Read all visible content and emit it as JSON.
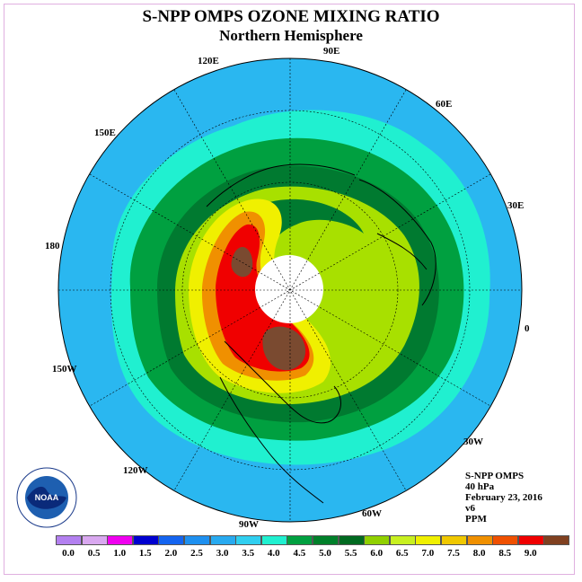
{
  "title": "S-NPP OMPS OZONE MIXING RATIO",
  "subtitle": "Northern Hemisphere",
  "longitude_labels": [
    {
      "text": "90E",
      "name": "lon-label-90e"
    },
    {
      "text": "60E",
      "name": "lon-label-60e"
    },
    {
      "text": "30E",
      "name": "lon-label-30e"
    },
    {
      "text": "0",
      "name": "lon-label-0"
    },
    {
      "text": "30W",
      "name": "lon-label-30w"
    },
    {
      "text": "60W",
      "name": "lon-label-60w"
    },
    {
      "text": "90W",
      "name": "lon-label-90w"
    },
    {
      "text": "120W",
      "name": "lon-label-120w"
    },
    {
      "text": "150W",
      "name": "lon-label-150w"
    },
    {
      "text": "180",
      "name": "lon-label-180"
    },
    {
      "text": "150E",
      "name": "lon-label-150e"
    },
    {
      "text": "120E",
      "name": "lon-label-120e"
    }
  ],
  "info": {
    "instrument": "S-NPP OMPS",
    "level": "40 hPa",
    "date": "February 23, 2016",
    "version": "v6",
    "units": "PPM"
  },
  "logo": {
    "text": "NOAA"
  },
  "colorbar": {
    "ticks": [
      "0.0",
      "0.5",
      "1.0",
      "1.5",
      "2.0",
      "2.5",
      "3.0",
      "3.5",
      "4.0",
      "4.5",
      "5.0",
      "5.5",
      "6.0",
      "6.5",
      "7.0",
      "7.5",
      "8.0",
      "8.5",
      "9.0"
    ],
    "colors": [
      "#b380f0",
      "#d9a8f0",
      "#f000f0",
      "#0000d0",
      "#1464f0",
      "#1e90f0",
      "#28aaf0",
      "#30cff0",
      "#20f0d0",
      "#00a040",
      "#00802a",
      "#006a20",
      "#90d000",
      "#c8f020",
      "#f0f000",
      "#f0c800",
      "#f09000",
      "#f05000",
      "#f00000",
      "#804020"
    ]
  },
  "colors": {
    "outer": "#2ab7f0",
    "cyan": "#20f0d0",
    "band1": "#00a040",
    "band2": "#007a30",
    "yellowgreen": "#a8e000",
    "yellow": "#f0f000",
    "orange": "#f09000",
    "red": "#f00000",
    "brown": "#7a4a30",
    "polar_cap": "#ffffff"
  }
}
